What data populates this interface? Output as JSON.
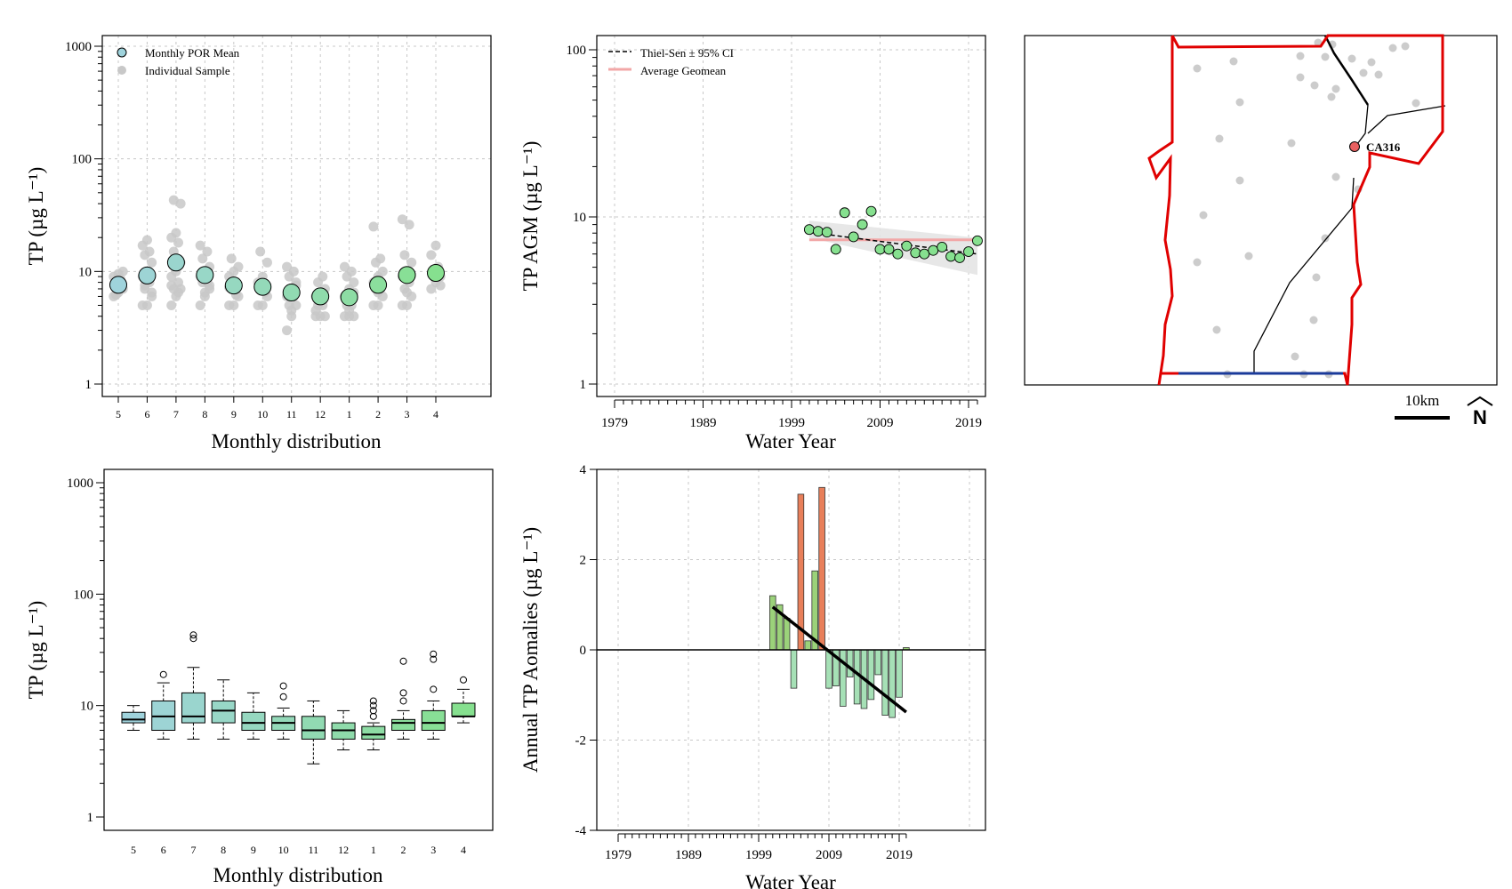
{
  "chart_data": [
    {
      "type": "scatter",
      "panel": "monthly-mean",
      "xlabel": "Monthly distribution",
      "ylabel": "TP (µg L⁻¹)",
      "y_scale": "log",
      "ylim": [
        1,
        1000
      ],
      "y_ticks": [
        "1",
        "10",
        "100",
        "1000"
      ],
      "categories": [
        "5",
        "6",
        "7",
        "8",
        "9",
        "10",
        "11",
        "12",
        "1",
        "2",
        "3",
        "4"
      ],
      "legend": [
        "Monthly POR Mean",
        "Individual Sample"
      ],
      "grid": true,
      "series": [
        {
          "name": "Monthly POR Mean",
          "values": [
            7.6,
            9.2,
            12,
            9.3,
            7.5,
            7.3,
            6.5,
            6.0,
            5.9,
            7.6,
            9.3,
            9.7
          ]
        },
        {
          "name": "Individual Sample",
          "samples": [
            [
              6,
              6.5,
              7,
              7.5,
              8,
              9,
              9.5,
              10,
              6.2,
              8.5
            ],
            [
              5,
              5,
              6,
              7,
              8,
              9,
              10,
              12,
              14,
              15,
              17,
              19,
              6.5,
              7.5
            ],
            [
              5,
              6,
              7,
              7,
              8,
              9,
              10,
              12,
              15,
              18,
              20,
              22,
              40,
              43,
              6.5,
              7.5
            ],
            [
              5,
              6,
              7,
              8,
              8,
              9,
              10,
              11,
              13,
              15,
              17,
              6.5,
              7.5
            ],
            [
              5,
              5,
              6,
              7,
              8,
              9,
              10,
              11,
              13,
              6.2,
              7.2
            ],
            [
              5,
              5,
              6,
              7,
              7,
              8,
              9,
              12,
              15,
              6.5
            ],
            [
              3,
              4,
              5,
              5,
              6,
              6,
              7,
              8,
              9,
              10,
              11,
              4.5,
              7.5
            ],
            [
              4,
              4,
              4,
              5,
              5,
              6,
              6,
              7,
              8,
              9,
              4.5,
              6.5
            ],
            [
              4,
              4,
              4,
              5,
              5,
              6,
              7,
              8,
              9,
              10,
              11,
              4.5,
              6.5
            ],
            [
              5,
              5,
              6,
              7,
              7,
              8,
              9,
              10,
              12,
              13,
              25,
              6.5
            ],
            [
              5,
              5,
              6,
              7,
              8,
              9,
              10,
              12,
              14,
              26,
              29,
              6.5
            ],
            [
              7,
              8,
              9,
              10,
              11,
              14,
              17,
              7.5
            ]
          ]
        }
      ]
    },
    {
      "type": "scatter",
      "panel": "annual-geomean",
      "xlabel": "Water Year",
      "ylabel": "TP AGM (µg L⁻¹)",
      "y_scale": "log",
      "ylim": [
        1,
        100
      ],
      "xlim": [
        1977,
        2022
      ],
      "y_ticks": [
        "1",
        "10",
        "100"
      ],
      "x_ticks": [
        "1979",
        "1989",
        "1999",
        "2009",
        "2019"
      ],
      "legend": [
        "Thiel-Sen ± 95% CI",
        "Average Geomean"
      ],
      "grid": true,
      "x": [
        2001,
        2002,
        2003,
        2004,
        2005,
        2006,
        2007,
        2008,
        2009,
        2010,
        2011,
        2012,
        2013,
        2014,
        2015,
        2016,
        2017,
        2018,
        2019,
        2020
      ],
      "values": [
        8.4,
        8.2,
        8.1,
        6.4,
        10.6,
        7.6,
        9.0,
        10.8,
        6.4,
        6.4,
        6.0,
        6.7,
        6.1,
        6.0,
        6.3,
        6.6,
        5.8,
        5.7,
        6.2,
        7.2
      ],
      "average_geomean": 7.3,
      "thiel_sen": {
        "x": [
          2001,
          2020
        ],
        "y": [
          8.1,
          6.0
        ]
      },
      "ci_band": {
        "x": [
          2001,
          2020
        ],
        "lower": [
          7.5,
          4.5
        ],
        "upper": [
          9.5,
          7.5
        ]
      }
    },
    {
      "type": "box",
      "panel": "monthly-box",
      "xlabel": "Monthly distribution",
      "ylabel": "TP (µg L⁻¹)",
      "y_scale": "log",
      "ylim": [
        1,
        1000
      ],
      "y_ticks": [
        "1",
        "10",
        "100",
        "1000"
      ],
      "categories": [
        "5",
        "6",
        "7",
        "8",
        "9",
        "10",
        "11",
        "12",
        "1",
        "2",
        "3",
        "4"
      ],
      "grid": false,
      "boxes": [
        {
          "min": 6.0,
          "q1": 7.0,
          "median": 7.5,
          "q3": 8.7,
          "max": 10.0,
          "outliers": []
        },
        {
          "min": 5.0,
          "q1": 6.0,
          "median": 8.0,
          "q3": 11.0,
          "max": 16.0,
          "outliers": [
            19
          ]
        },
        {
          "min": 5.0,
          "q1": 7.0,
          "median": 8.0,
          "q3": 13.0,
          "max": 22.0,
          "outliers": [
            40,
            43
          ]
        },
        {
          "min": 5.0,
          "q1": 7.0,
          "median": 9.0,
          "q3": 11.0,
          "max": 17.0,
          "outliers": []
        },
        {
          "min": 5.0,
          "q1": 6.0,
          "median": 7.0,
          "q3": 8.7,
          "max": 13.0,
          "outliers": []
        },
        {
          "min": 5.0,
          "q1": 6.0,
          "median": 7.0,
          "q3": 8.0,
          "max": 9.5,
          "outliers": [
            12,
            15
          ]
        },
        {
          "min": 3.0,
          "q1": 5.0,
          "median": 6.0,
          "q3": 8.0,
          "max": 11.0,
          "outliers": []
        },
        {
          "min": 4.0,
          "q1": 5.0,
          "median": 6.0,
          "q3": 7.0,
          "max": 9.0,
          "outliers": []
        },
        {
          "min": 4.0,
          "q1": 5.0,
          "median": 5.5,
          "q3": 6.5,
          "max": 7.0,
          "outliers": [
            8,
            9,
            10,
            11
          ]
        },
        {
          "min": 5.0,
          "q1": 6.0,
          "median": 7.0,
          "q3": 7.5,
          "max": 9.0,
          "outliers": [
            11,
            13,
            25
          ]
        },
        {
          "min": 5.0,
          "q1": 6.0,
          "median": 7.0,
          "q3": 9.0,
          "max": 11.0,
          "outliers": [
            14,
            26,
            29
          ]
        },
        {
          "min": 7.0,
          "q1": 8.0,
          "median": 8.0,
          "q3": 10.5,
          "max": 14.0,
          "outliers": [
            17
          ]
        }
      ]
    },
    {
      "type": "bar",
      "panel": "annual-anomalies",
      "xlabel": "Water Year",
      "ylabel": "Annual TP Aomalies (µg L⁻¹)",
      "ylim": [
        -4,
        4
      ],
      "xlim": [
        1977,
        2022
      ],
      "y_ticks": [
        "-4",
        "-2",
        "0",
        "2",
        "4"
      ],
      "x_ticks": [
        "1979",
        "1989",
        "1999",
        "2009",
        "2019"
      ],
      "grid": true,
      "x": [
        2001,
        2002,
        2003,
        2004,
        2005,
        2006,
        2007,
        2008,
        2009,
        2010,
        2011,
        2012,
        2013,
        2014,
        2015,
        2016,
        2017,
        2018,
        2019,
        2020
      ],
      "values": [
        1.2,
        1.0,
        0.7,
        -0.85,
        3.45,
        0.2,
        1.75,
        3.6,
        -0.85,
        -0.8,
        -1.25,
        -0.6,
        -1.2,
        -1.3,
        -1.1,
        -0.55,
        -1.45,
        -1.5,
        -1.05,
        0.05
      ],
      "trend": {
        "x": [
          2001,
          2020
        ],
        "y": [
          0.95,
          -1.38
        ]
      }
    }
  ],
  "map": {
    "label": "CA316",
    "scale_label": "10km",
    "north_label": "N"
  },
  "colors": {
    "mean_early": "#9fd3dc",
    "mean_late": "#86e08f",
    "sample": "#c8c8c8",
    "thiel_sen_line": "#000000",
    "ci_band": "#e4e4e4",
    "average_geomean": "#f2a7a7",
    "bar_positive_high": "#e87f5a",
    "bar_positive_low": "#9bd27a",
    "bar_negative": "#a6e0b6",
    "trend": "#000000",
    "boundary": "#e00000",
    "site": "#e86060",
    "stations": "#cccccc"
  }
}
